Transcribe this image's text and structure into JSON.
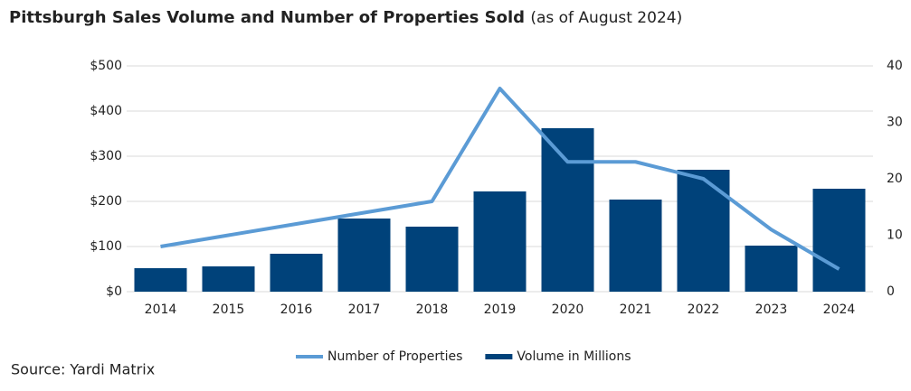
{
  "chart_data": {
    "type": "bar_line",
    "title": "Pittsburgh Sales Volume and Number of Properties Sold",
    "subtitle": "(as of August 2024)",
    "source": "Source: Yardi Matrix",
    "categories": [
      "2014",
      "2015",
      "2016",
      "2017",
      "2018",
      "2019",
      "2020",
      "2021",
      "2022",
      "2023",
      "2024"
    ],
    "series": [
      {
        "name": "Number of Properties",
        "type": "line",
        "axis": "y2",
        "color": "#5b9bd5",
        "values": [
          8,
          10,
          12,
          14,
          16,
          36,
          23,
          23,
          20,
          11,
          4
        ]
      },
      {
        "name": "Volume in Millions",
        "type": "bar",
        "color": "#00427a",
        "values": [
          52,
          56,
          84,
          162,
          144,
          222,
          362,
          204,
          270,
          102,
          228
        ]
      }
    ],
    "ylim": [
      0,
      500
    ],
    "yticks": [
      {
        "value": 0,
        "label": "$0"
      },
      {
        "value": 100,
        "label": "$100"
      },
      {
        "value": 200,
        "label": "$200"
      },
      {
        "value": 300,
        "label": "$300"
      },
      {
        "value": 400,
        "label": "$400"
      },
      {
        "value": 500,
        "label": "$500"
      }
    ],
    "y2lim": [
      0,
      40
    ],
    "y2ticks": [
      0,
      10,
      20,
      30,
      40
    ],
    "grid": true
  }
}
